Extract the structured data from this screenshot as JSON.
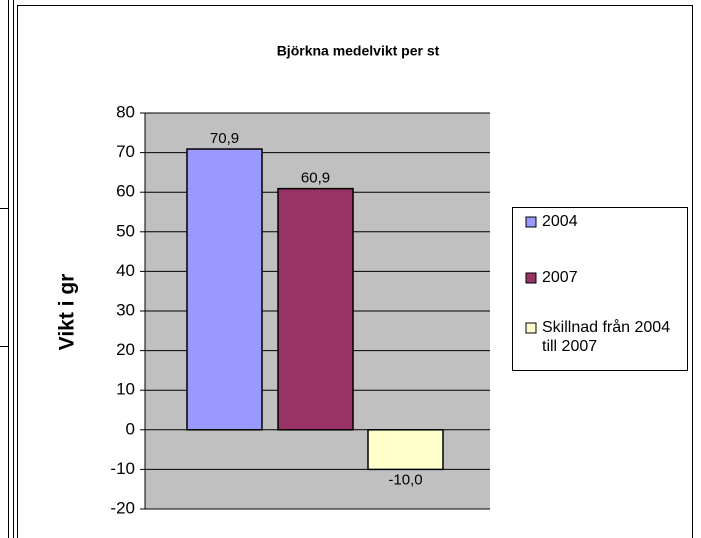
{
  "chart_data": {
    "type": "bar",
    "title": "Björkna medelvikt per st",
    "y_label": "Vikt i gr",
    "categories": [
      null
    ],
    "series": [
      {
        "name": "2004",
        "color": "#9999ff",
        "values": [
          70.9
        ],
        "value_labels": [
          "70,9"
        ]
      },
      {
        "name": "2007",
        "color": "#993366",
        "values": [
          60.9
        ],
        "value_labels": [
          "60,9"
        ]
      },
      {
        "name": "Skillnad från 2004 till 2007",
        "color": "#ffffcc",
        "values": [
          -10.0
        ],
        "value_labels": [
          "-10,0"
        ]
      }
    ],
    "ylim": [
      -20,
      80
    ],
    "yticks": [
      -20,
      -10,
      0,
      10,
      20,
      30,
      40,
      50,
      60,
      70,
      80
    ],
    "grid": true,
    "legend": "right"
  }
}
